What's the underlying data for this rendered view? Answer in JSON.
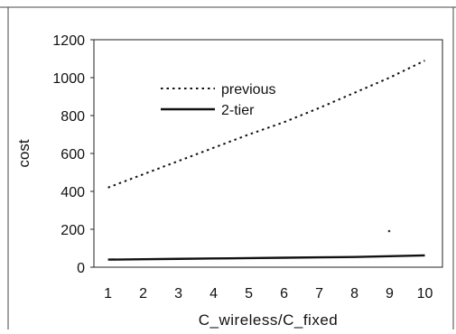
{
  "chart_data": {
    "type": "line",
    "title": "",
    "xlabel": "C_wireless/C_fixed",
    "ylabel": "cost",
    "x": [
      1,
      2,
      3,
      4,
      5,
      6,
      7,
      8,
      9,
      10
    ],
    "xlim": [
      0.6,
      10.5
    ],
    "ylim": [
      0,
      1200
    ],
    "x_ticks": [
      "1",
      "2",
      "3",
      "4",
      "5",
      "6",
      "7",
      "8",
      "9",
      "10"
    ],
    "y_ticks": [
      "0",
      "200",
      "400",
      "600",
      "800",
      "1000",
      "1200"
    ],
    "grid": false,
    "legend_position": "upper-left",
    "series": [
      {
        "name": "previous",
        "style": "dotted",
        "color": "#111111",
        "values": [
          420,
          490,
          560,
          630,
          700,
          765,
          840,
          920,
          1000,
          1090
        ]
      },
      {
        "name": "2-tier",
        "style": "solid",
        "color": "#111111",
        "values": [
          40,
          42,
          44,
          46,
          48,
          50,
          52,
          54,
          58,
          62
        ]
      }
    ]
  }
}
